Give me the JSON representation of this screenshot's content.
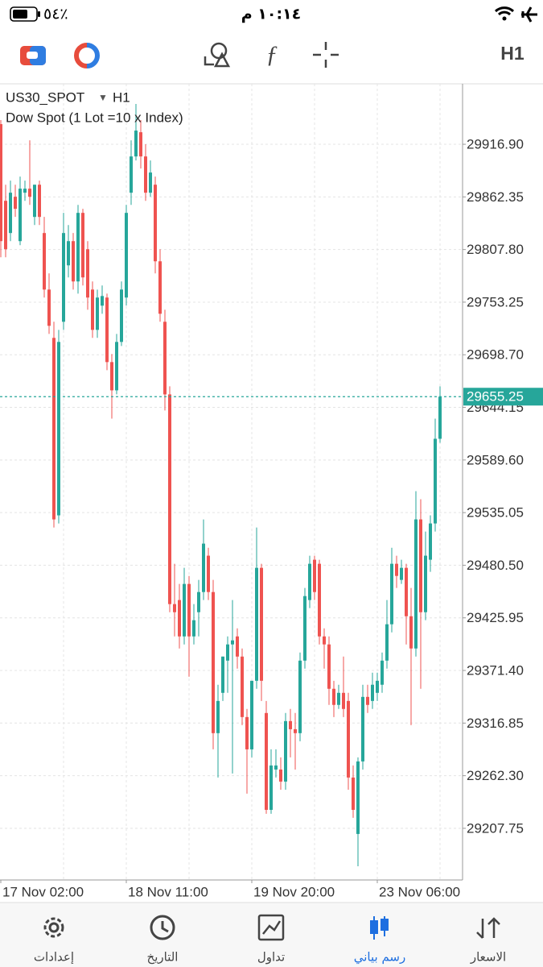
{
  "status_bar": {
    "battery": "٥٤٪",
    "time": "١٠:١٤ م"
  },
  "toolbar": {
    "timeframe": "H1"
  },
  "tabs": [
    "إعدادات",
    "التاريخ",
    "تداول",
    "رسم بياني",
    "الاسعار"
  ],
  "chart_data": {
    "type": "candlestick",
    "title": "US30_SPOT",
    "timeframe": "H1",
    "subtitle": "Dow Spot (1 Lot =10 x Index)",
    "up_color": "#26a69a",
    "down_color": "#ef5350",
    "grid": true,
    "ylim": [
      29154.2,
      29979.6
    ],
    "yticks": [
      {
        "value": 29916.9,
        "label": "29916.90"
      },
      29862.35,
      {
        "value": 29807.8,
        "label": "29807.80"
      },
      29753.25,
      {
        "value": 29698.7,
        "label": "29698.70"
      },
      29644.15,
      {
        "value": 29589.6,
        "label": "29589.60"
      },
      29535.05,
      {
        "value": 29480.5,
        "label": "29480.50"
      },
      29425.95,
      {
        "value": 29371.4,
        "label": "29371.40"
      },
      29316.85,
      {
        "value": 29262.3,
        "label": "29262.30"
      },
      29207.75
    ],
    "last_price": 29655.25,
    "categories": [
      "17 Nov 02:00",
      null,
      null,
      null,
      null,
      null,
      null,
      null,
      null,
      null,
      null,
      null,
      null,
      null,
      null,
      null,
      null,
      null,
      null,
      null,
      null,
      null,
      null,
      null,
      null,
      null,
      "18 Nov 11:00",
      null,
      null,
      null,
      null,
      null,
      null,
      null,
      null,
      null,
      null,
      null,
      null,
      null,
      null,
      null,
      null,
      null,
      null,
      null,
      null,
      null,
      null,
      null,
      null,
      null,
      "19 Nov 20:00",
      null,
      null,
      null,
      null,
      null,
      null,
      null,
      null,
      null,
      null,
      null,
      null,
      null,
      null,
      null,
      null,
      null,
      null,
      null,
      null,
      null,
      null,
      null,
      null,
      null,
      "23 Nov 06:00",
      null,
      null,
      null,
      null,
      null,
      null,
      null,
      null,
      null,
      null,
      null,
      null,
      null
    ],
    "ohlc": [
      [
        29937.8,
        29942.0,
        29799.8,
        29816.5
      ],
      [
        29858.3,
        29875.0,
        29799.8,
        29808.1
      ],
      [
        29824.9,
        29879.2,
        29816.5,
        29866.7
      ],
      [
        29862.5,
        29875.0,
        29841.6,
        29850.0
      ],
      [
        29816.5,
        29883.4,
        29812.3,
        29870.9
      ],
      [
        29866.7,
        29879.2,
        29858.3,
        29870.9
      ],
      [
        29870.9,
        29921.0,
        29854.1,
        29862.5
      ],
      [
        29841.6,
        29875.0,
        29833.2,
        29875.0
      ],
      [
        29875.0,
        29879.2,
        29833.2,
        29841.6
      ],
      [
        29824.9,
        29841.6,
        29758.0,
        29766.3
      ],
      [
        29766.3,
        29783.1,
        29720.3,
        29728.7
      ],
      [
        29716.2,
        29732.9,
        29519.6,
        29528.0
      ],
      [
        29532.2,
        29724.5,
        29523.8,
        29712.0
      ],
      [
        29732.9,
        29845.8,
        29724.5,
        29824.9
      ],
      [
        29791.4,
        29833.2,
        29778.9,
        29816.5
      ],
      [
        29816.5,
        29824.9,
        29766.3,
        29774.7
      ],
      [
        29774.7,
        29854.1,
        29762.1,
        29845.8
      ],
      [
        29845.8,
        29850.0,
        29770.5,
        29778.9
      ],
      [
        29808.1,
        29816.5,
        29745.4,
        29758.0
      ],
      [
        29766.3,
        29774.7,
        29716.2,
        29724.5
      ],
      [
        29724.5,
        29766.3,
        29716.2,
        29758.0
      ],
      [
        29749.6,
        29770.5,
        29741.2,
        29759.6
      ],
      [
        29758.0,
        29762.1,
        29682.7,
        29691.1
      ],
      [
        29691.1,
        29699.4,
        29632.5,
        29661.8
      ],
      [
        29661.8,
        29720.3,
        29657.6,
        29712.0
      ],
      [
        29712.0,
        29774.7,
        29707.8,
        29766.3
      ],
      [
        29758.0,
        29854.1,
        29749.6,
        29845.8
      ],
      [
        29866.7,
        29921.0,
        29854.1,
        29904.3
      ],
      [
        29904.3,
        29958.7,
        29900.1,
        29931.1
      ],
      [
        29929.4,
        29942.0,
        29891.8,
        29904.3
      ],
      [
        29904.3,
        29916.9,
        29858.3,
        29866.7
      ],
      [
        29866.7,
        29900.1,
        29862.5,
        29887.6
      ],
      [
        29875.0,
        29883.4,
        29783.1,
        29795.6
      ],
      [
        29795.6,
        29808.1,
        29732.9,
        29741.2
      ],
      [
        29732.9,
        29745.4,
        29640.9,
        29657.6
      ],
      [
        29657.6,
        29666.0,
        29431.8,
        29440.2
      ],
      [
        29440.2,
        29482.0,
        29406.7,
        29431.8
      ],
      [
        29444.4,
        29461.1,
        29394.2,
        29406.7
      ],
      [
        29406.7,
        29477.8,
        29398.4,
        29461.1
      ],
      [
        29461.1,
        29469.4,
        29364.9,
        29406.7
      ],
      [
        29406.7,
        29440.2,
        29398.4,
        29423.5
      ],
      [
        29431.8,
        29465.3,
        29406.7,
        29452.7
      ],
      [
        29452.7,
        29528.0,
        29444.4,
        29502.9
      ],
      [
        29490.4,
        29498.6,
        29444.4,
        29452.7
      ],
      [
        29452.7,
        29465.3,
        29289.6,
        29306.4
      ],
      [
        29306.4,
        29356.6,
        29260.4,
        29339.8
      ],
      [
        29348.2,
        29385.8,
        29339.8,
        29385.8
      ],
      [
        29381.6,
        29406.7,
        29348.2,
        29398.4
      ],
      [
        29398.4,
        29444.4,
        29264.6,
        29402.6
      ],
      [
        29406.7,
        29415.1,
        29373.3,
        29385.8
      ],
      [
        29385.8,
        29394.2,
        29314.7,
        29323.1
      ],
      [
        29323.1,
        29331.5,
        29243.7,
        29289.6
      ],
      [
        29289.6,
        29360.7,
        29281.3,
        29360.7
      ],
      [
        29360.7,
        29519.6,
        29352.4,
        29477.8
      ],
      [
        29477.8,
        29482.0,
        29339.8,
        29360.7
      ],
      [
        29327.3,
        29339.8,
        29222.8,
        29226.9
      ],
      [
        29226.9,
        29289.6,
        29222.8,
        29272.9
      ],
      [
        29268.7,
        29289.6,
        29260.4,
        29272.9
      ],
      [
        29268.7,
        29281.3,
        29247.8,
        29256.2
      ],
      [
        29256.2,
        29327.3,
        29247.8,
        29318.9
      ],
      [
        29318.9,
        29331.5,
        29281.3,
        29310.5
      ],
      [
        29310.5,
        29327.3,
        29268.7,
        29306.4
      ],
      [
        29306.4,
        29390.0,
        29298.0,
        29381.6
      ],
      [
        29381.6,
        29456.9,
        29373.3,
        29448.5
      ],
      [
        29444.4,
        29490.4,
        29436.0,
        29482.0
      ],
      [
        29486.2,
        29490.4,
        29444.4,
        29452.7
      ],
      [
        29482.0,
        29486.2,
        29398.4,
        29406.7
      ],
      [
        29406.7,
        29415.1,
        29373.3,
        29398.4
      ],
      [
        29398.4,
        29406.7,
        29335.7,
        29352.4
      ],
      [
        29352.4,
        29360.7,
        29323.1,
        29335.7
      ],
      [
        29335.7,
        29356.6,
        29331.5,
        29348.2
      ],
      [
        29348.2,
        29385.8,
        29323.1,
        29331.5
      ],
      [
        29339.8,
        29348.2,
        29247.8,
        29260.4
      ],
      [
        29260.4,
        29272.9,
        29218.6,
        29226.9
      ],
      [
        29201.9,
        29281.3,
        29168.4,
        29277.1
      ],
      [
        29277.1,
        29356.6,
        29268.7,
        29344.0
      ],
      [
        29344.0,
        29356.6,
        29327.3,
        29335.7
      ],
      [
        29339.8,
        29369.1,
        29331.5,
        29356.6
      ],
      [
        29348.2,
        29369.1,
        29339.8,
        29360.7
      ],
      [
        29356.6,
        29390.0,
        29348.2,
        29381.6
      ],
      [
        29381.6,
        29444.4,
        29373.3,
        29419.3
      ],
      [
        29419.3,
        29498.6,
        29410.9,
        29482.0
      ],
      [
        29482.0,
        29490.4,
        29456.9,
        29469.4
      ],
      [
        29465.3,
        29486.2,
        29461.1,
        29477.8
      ],
      [
        29477.8,
        29482.0,
        29398.4,
        29427.6
      ],
      [
        29427.6,
        29456.9,
        29314.7,
        29394.2
      ],
      [
        29394.2,
        29557.3,
        29385.8,
        29528.0
      ],
      [
        29528.0,
        29548.9,
        29352.4,
        29431.8
      ],
      [
        29431.8,
        29515.4,
        29423.5,
        29490.4
      ],
      [
        29486.2,
        29532.2,
        29473.6,
        29523.8
      ],
      [
        29523.8,
        29632.5,
        29515.4,
        29611.6
      ],
      [
        29611.6,
        29666.0,
        29607.4,
        29655.25
      ]
    ]
  }
}
